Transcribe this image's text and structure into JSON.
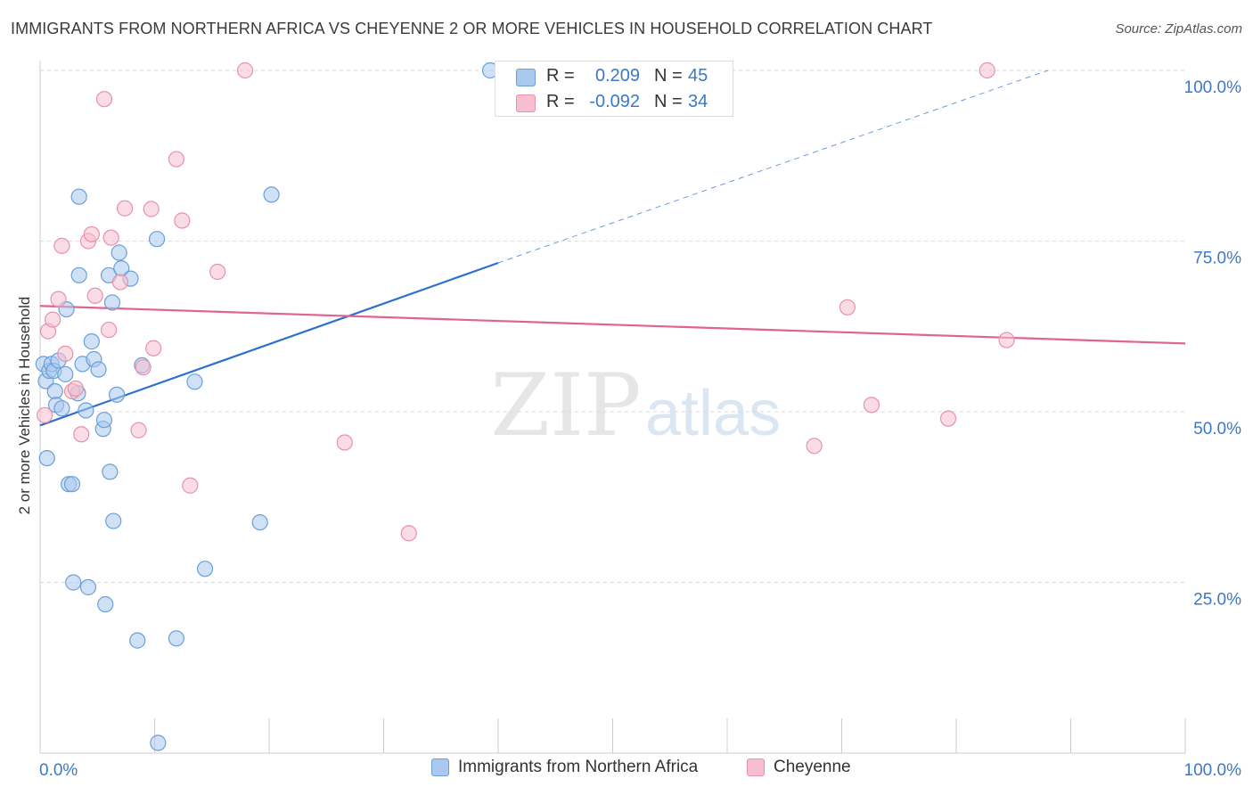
{
  "title": "IMMIGRANTS FROM NORTHERN AFRICA VS CHEYENNE 2 OR MORE VEHICLES IN HOUSEHOLD CORRELATION CHART",
  "source": "Source: ZipAtlas.com",
  "watermark": {
    "zip": "ZIP",
    "atlas": "atlas"
  },
  "colors": {
    "blue_fill": "#a9c9ee",
    "blue_stroke": "#6a9fd8",
    "blue_line": "#2e6fd0",
    "pink_fill": "#f6bfd0",
    "pink_stroke": "#e891ad",
    "pink_line": "#e0648f",
    "axis_text": "#3b78c9",
    "grid": "#d9d9d9"
  },
  "stats": [
    {
      "r_label": "R =",
      "r_value": "0.209",
      "n_label": "N =",
      "n_value": "45"
    },
    {
      "r_label": "R =",
      "r_value": "-0.092",
      "n_label": "N =",
      "n_value": "34"
    }
  ],
  "legend": [
    {
      "label": "Immigrants from Northern Africa"
    },
    {
      "label": "Cheyenne"
    }
  ],
  "chart_data": {
    "type": "scatter",
    "title": "IMMIGRANTS FROM NORTHERN AFRICA VS CHEYENNE 2 OR MORE VEHICLES IN HOUSEHOLD CORRELATION CHART",
    "xlabel": "",
    "ylabel": "2 or more Vehicles in Household",
    "xlim": [
      0,
      100
    ],
    "ylim": [
      0,
      100
    ],
    "x_tick_labels": [
      {
        "value": 0,
        "label": "0.0%"
      },
      {
        "value": 100,
        "label": "100.0%"
      }
    ],
    "y_tick_labels": [
      {
        "value": 25,
        "label": "25.0%"
      },
      {
        "value": 50,
        "label": "50.0%"
      },
      {
        "value": 75,
        "label": "75.0%"
      },
      {
        "value": 100,
        "label": "100.0%"
      }
    ],
    "series": [
      {
        "name": "Immigrants from Northern Africa",
        "color": "blue",
        "points": [
          [
            0.3,
            57.0
          ],
          [
            0.5,
            54.5
          ],
          [
            0.6,
            43.2
          ],
          [
            0.8,
            56.0
          ],
          [
            1.0,
            57.0
          ],
          [
            1.2,
            56.0
          ],
          [
            1.3,
            53.0
          ],
          [
            1.4,
            51.0
          ],
          [
            1.6,
            57.5
          ],
          [
            1.9,
            50.5
          ],
          [
            2.2,
            55.5
          ],
          [
            2.3,
            65.0
          ],
          [
            2.5,
            39.4
          ],
          [
            2.8,
            39.4
          ],
          [
            2.9,
            25.0
          ],
          [
            3.3,
            52.7
          ],
          [
            3.4,
            81.5
          ],
          [
            3.4,
            70.0
          ],
          [
            3.7,
            57.0
          ],
          [
            4.0,
            50.2
          ],
          [
            4.2,
            24.3
          ],
          [
            4.5,
            60.3
          ],
          [
            4.7,
            57.7
          ],
          [
            5.1,
            56.2
          ],
          [
            5.5,
            47.5
          ],
          [
            5.6,
            48.8
          ],
          [
            5.7,
            21.8
          ],
          [
            6.0,
            70.0
          ],
          [
            6.1,
            41.2
          ],
          [
            6.3,
            66.0
          ],
          [
            6.4,
            34.0
          ],
          [
            6.7,
            52.5
          ],
          [
            6.9,
            73.3
          ],
          [
            7.1,
            71.0
          ],
          [
            7.9,
            69.5
          ],
          [
            8.5,
            16.5
          ],
          [
            8.9,
            56.8
          ],
          [
            10.2,
            75.3
          ],
          [
            10.3,
            1.5
          ],
          [
            11.9,
            16.8
          ],
          [
            13.5,
            54.4
          ],
          [
            14.4,
            27.0
          ],
          [
            19.2,
            33.8
          ],
          [
            20.2,
            81.8
          ],
          [
            39.3,
            100.0
          ]
        ]
      },
      {
        "name": "Cheyenne",
        "color": "pink",
        "points": [
          [
            0.4,
            49.5
          ],
          [
            0.7,
            61.8
          ],
          [
            1.1,
            63.5
          ],
          [
            1.6,
            66.5
          ],
          [
            1.9,
            74.3
          ],
          [
            2.2,
            58.5
          ],
          [
            2.8,
            53.0
          ],
          [
            3.1,
            53.4
          ],
          [
            3.6,
            46.7
          ],
          [
            4.2,
            75.0
          ],
          [
            4.5,
            76.0
          ],
          [
            4.8,
            67.0
          ],
          [
            5.6,
            95.8
          ],
          [
            6.0,
            62.0
          ],
          [
            6.2,
            75.5
          ],
          [
            7.0,
            69.0
          ],
          [
            7.4,
            79.8
          ],
          [
            8.6,
            47.3
          ],
          [
            9.0,
            56.5
          ],
          [
            9.7,
            79.7
          ],
          [
            9.9,
            59.3
          ],
          [
            11.9,
            87.0
          ],
          [
            12.4,
            78.0
          ],
          [
            13.1,
            39.2
          ],
          [
            15.5,
            70.5
          ],
          [
            17.9,
            100.0
          ],
          [
            26.6,
            45.5
          ],
          [
            32.2,
            32.2
          ],
          [
            67.6,
            45.0
          ],
          [
            70.5,
            65.3
          ],
          [
            72.6,
            51.0
          ],
          [
            79.3,
            49.0
          ],
          [
            82.7,
            100.0
          ],
          [
            84.4,
            60.5
          ]
        ]
      }
    ],
    "trend_lines": [
      {
        "series": "Immigrants from Northern Africa",
        "x_solid": [
          0,
          40
        ],
        "y_solid": [
          48.0,
          71.8
        ],
        "x_dashed": [
          40,
          88
        ],
        "y_dashed": [
          71.8,
          100.0
        ]
      },
      {
        "series": "Cheyenne",
        "x": [
          0,
          100
        ],
        "y": [
          65.5,
          60.0
        ]
      }
    ]
  }
}
